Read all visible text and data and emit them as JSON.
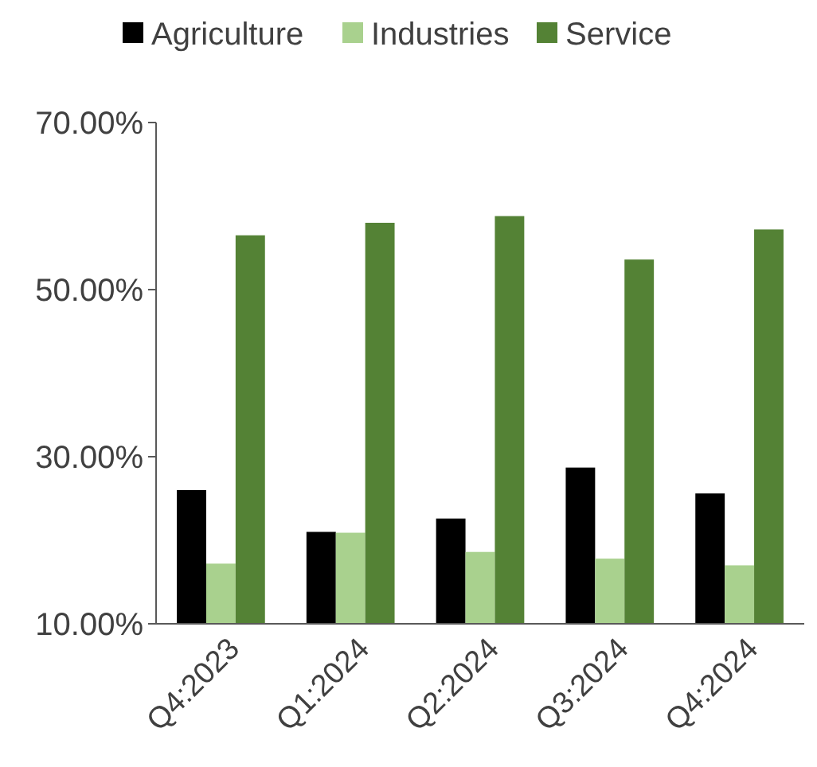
{
  "chart_data": {
    "type": "bar",
    "categories": [
      "Q4:2023",
      "Q1:2024",
      "Q2:2024",
      "Q3:2024",
      "Q4:2024"
    ],
    "series": [
      {
        "name": "Agriculture",
        "color": "#000000",
        "values": [
          26.0,
          21.0,
          22.6,
          28.7,
          25.6
        ]
      },
      {
        "name": "Industries",
        "color": "#a9d18e",
        "values": [
          17.2,
          20.9,
          18.6,
          17.8,
          17.0
        ]
      },
      {
        "name": "Service",
        "color": "#548235",
        "values": [
          56.5,
          58.0,
          58.8,
          53.6,
          57.2
        ]
      }
    ],
    "ylim": [
      10,
      70
    ],
    "yticks": [
      {
        "value": 10,
        "label": "10.00%"
      },
      {
        "value": 30,
        "label": "30.00%"
      },
      {
        "value": 50,
        "label": "50.00%"
      },
      {
        "value": 70,
        "label": "70.00%"
      }
    ],
    "grid": false,
    "legend": "top"
  }
}
